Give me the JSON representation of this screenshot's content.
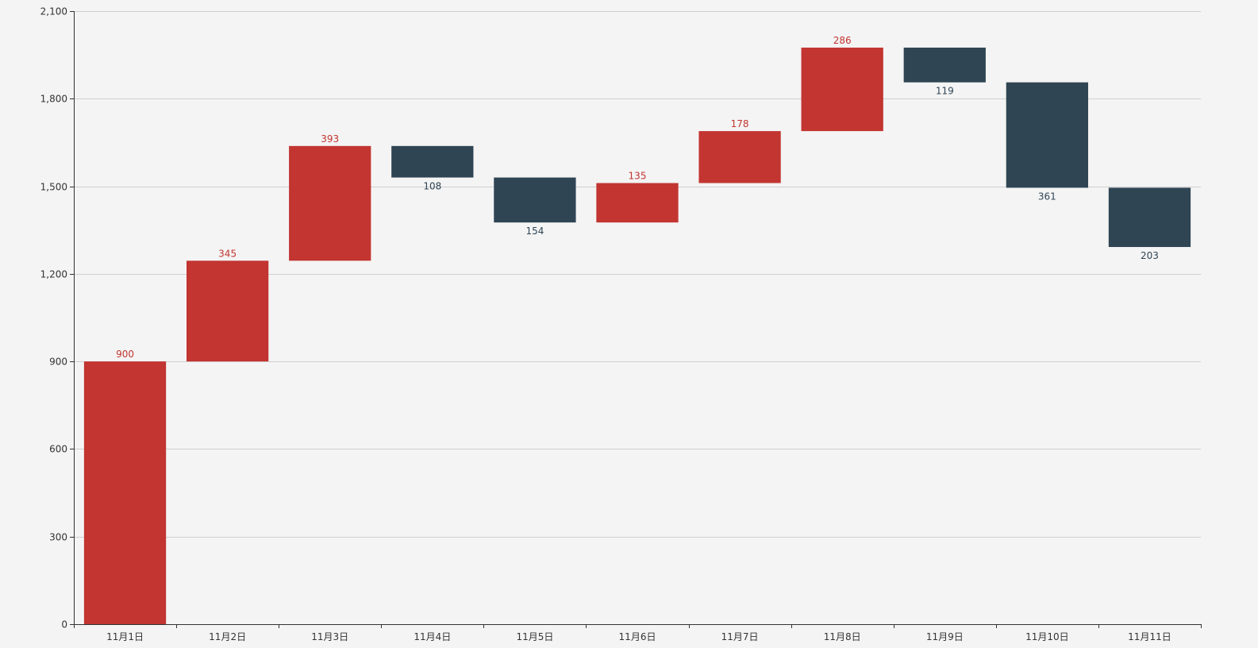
{
  "chart_data": {
    "type": "bar",
    "subtype": "waterfall",
    "title": "",
    "xlabel": "",
    "ylabel": "",
    "ylim": [
      0,
      2100
    ],
    "yticks": [
      0,
      300,
      600,
      900,
      1200,
      1500,
      1800,
      2100
    ],
    "ytick_labels": [
      "0",
      "300",
      "600",
      "900",
      "1,200",
      "1,500",
      "1,800",
      "2,100"
    ],
    "grid": true,
    "legend": "none",
    "categories": [
      "11月1日",
      "11月2日",
      "11月3日",
      "11月4日",
      "11月5日",
      "11月6日",
      "11月7日",
      "11月8日",
      "11月9日",
      "11月10日",
      "11月11日"
    ],
    "series": [
      {
        "values": [
          900,
          345,
          393,
          "-",
          "-",
          135,
          178,
          286,
          "-",
          "-",
          "-"
        ],
        "color": "#c23531"
      },
      {
        "values": [
          "-",
          "-",
          "-",
          108,
          154,
          "-",
          "-",
          "-",
          119,
          361,
          203
        ],
        "color": "#2f4554"
      }
    ],
    "base": [
      0,
      900,
      1245,
      1530,
      1376,
      1376,
      1511,
      1689,
      1856,
      1495,
      1292
    ],
    "data_labels": [
      "900",
      "345",
      "393",
      "108",
      "154",
      "135",
      "178",
      "286",
      "119",
      "361",
      "203"
    ]
  }
}
